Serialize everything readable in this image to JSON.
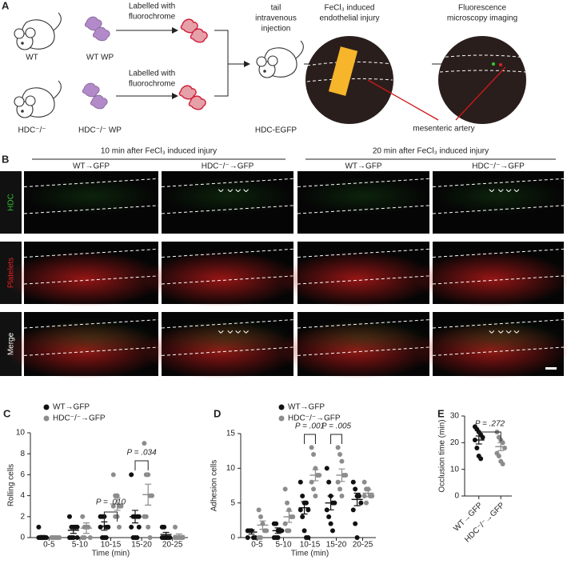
{
  "panel_a": {
    "label": "A",
    "wt": "WT",
    "wt_wp": "WT WP",
    "label_top": [
      "Labelled with",
      "fluorochrome"
    ],
    "label_bottom": [
      "Labelled with",
      "fluorochrome"
    ],
    "hdc": "HDC⁻/⁻",
    "hdc_wp": "HDC⁻/⁻ WP",
    "injection": [
      "tail",
      "intravenous",
      "injection"
    ],
    "recipient": "HDC-EGFP",
    "injury": [
      "FeCl₃ induced",
      "endothelial injury"
    ],
    "imaging": [
      "Fluorescence",
      "microscopy imaging"
    ],
    "artery": "mesenteric artery"
  },
  "panel_b": {
    "label": "B",
    "groups": [
      "10 min after FeCl₃ induced injury",
      "20 min after FeCl₃ induced injury"
    ],
    "columns": [
      "WT→GFP",
      "HDC⁻/⁻→GFP",
      "WT→GFP",
      "HDC⁻/⁻→GFP"
    ],
    "rows": [
      "HDC",
      "Platelets",
      "Merge"
    ]
  },
  "chart_data": [
    {
      "type": "dot",
      "label": "C",
      "y_label": "Rolling cells",
      "x_label": "Time (min)",
      "categories": [
        "0-5",
        "5-10",
        "10-15",
        "15-20",
        "20-25"
      ],
      "ylim": [
        0,
        10
      ],
      "yticks": [
        0,
        2,
        4,
        6,
        8,
        10
      ],
      "series": [
        {
          "name": "WT→GFP",
          "color": "#111111",
          "points": [
            [
              1,
              0,
              0,
              0,
              0,
              0,
              0,
              0
            ],
            [
              2,
              1,
              1,
              1,
              1,
              0,
              0,
              0,
              1,
              0
            ],
            [
              2,
              2,
              2,
              1,
              1,
              1,
              0,
              0,
              0,
              1
            ],
            [
              6,
              2,
              2,
              2,
              1,
              1,
              0,
              0,
              0,
              2
            ],
            [
              1,
              1,
              0,
              0,
              0,
              0,
              0,
              0
            ]
          ],
          "means": [
            0.1,
            0.7,
            1.1,
            2.0,
            0.3
          ],
          "sems": [
            0.1,
            0.3,
            0.4,
            0.6,
            0.2
          ]
        },
        {
          "name": "HDC⁻/⁻→GFP",
          "color": "#8c8c8c",
          "points": [
            [
              0,
              0,
              0,
              0,
              0,
              0
            ],
            [
              2,
              1,
              1,
              1,
              0,
              0,
              0
            ],
            [
              6,
              4,
              4,
              3,
              3,
              3,
              2,
              2,
              1
            ],
            [
              9,
              6,
              6,
              4,
              4,
              2,
              2,
              1,
              0
            ],
            [
              1,
              0,
              0,
              0,
              0,
              0
            ]
          ],
          "means": [
            0,
            0.9,
            3.2,
            4.1,
            0.2
          ],
          "sems": [
            0,
            0.5,
            0.6,
            1.0,
            0.15
          ]
        }
      ],
      "annotations": [
        "P = .010",
        "P = .034"
      ]
    },
    {
      "type": "dot",
      "label": "D",
      "y_label": "Adhesion cells",
      "x_label": "Time (min)",
      "categories": [
        "0-5",
        "5-10",
        "10-15",
        "15-20",
        "20-25"
      ],
      "ylim": [
        0,
        15
      ],
      "yticks": [
        0,
        5,
        10,
        15
      ],
      "series": [
        {
          "name": "WT→GFP",
          "color": "#111111",
          "points": [
            [
              1,
              1,
              1,
              0,
              0,
              0
            ],
            [
              2,
              2,
              1,
              1,
              1,
              0,
              0,
              0
            ],
            [
              8,
              6,
              5,
              5,
              4,
              4,
              3,
              1,
              0,
              0
            ],
            [
              10,
              8,
              6,
              5,
              5,
              4,
              3,
              2,
              1
            ],
            [
              8,
              7,
              6,
              6,
              5,
              4,
              2,
              0
            ]
          ],
          "means": [
            0.8,
            1,
            4.3,
            5,
            5.5
          ],
          "sems": [
            0.3,
            0.4,
            0.9,
            1.0,
            0.9
          ]
        },
        {
          "name": "HDC⁻/⁻→GFP",
          "color": "#8c8c8c",
          "points": [
            [
              4,
              3,
              2,
              1,
              1,
              0,
              0
            ],
            [
              7,
              5,
              4,
              3,
              3,
              2,
              1,
              1
            ],
            [
              13,
              12,
              10,
              9,
              9,
              8,
              7,
              6
            ],
            [
              13,
              12,
              11,
              9,
              9,
              8,
              7,
              6
            ],
            [
              8,
              7,
              7,
              6,
              6,
              6,
              5
            ]
          ],
          "means": [
            1.8,
            3,
            9,
            9,
            6.4
          ],
          "sems": [
            0.6,
            0.8,
            0.8,
            0.9,
            0.5
          ]
        }
      ],
      "annotations": [
        "P = .001",
        "P = .005"
      ]
    },
    {
      "type": "dot",
      "label": "E",
      "y_label": "Occlusion time (min)",
      "categories": [
        "WT→GFP",
        "HDC⁻/⁻→GFP"
      ],
      "colors": [
        "#111111",
        "#8c8c8c"
      ],
      "ylim": [
        0,
        30
      ],
      "yticks": [
        0,
        10,
        20,
        30
      ],
      "points": [
        [
          26,
          25,
          24,
          23,
          22,
          21,
          18,
          15,
          14
        ],
        [
          24,
          22,
          21,
          20,
          18,
          16,
          15,
          13,
          12
        ]
      ],
      "means": [
        21,
        18.5
      ],
      "sems": [
        1.5,
        1.5
      ],
      "annotations": [
        "P = .272"
      ]
    }
  ]
}
